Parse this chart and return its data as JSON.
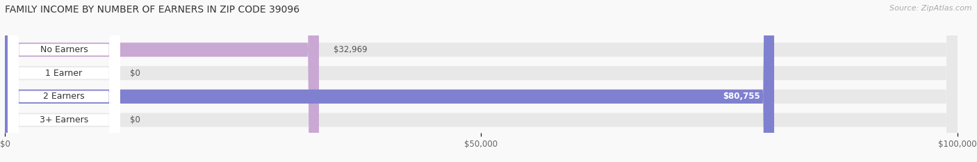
{
  "title": "FAMILY INCOME BY NUMBER OF EARNERS IN ZIP CODE 39096",
  "source": "Source: ZipAtlas.com",
  "categories": [
    "No Earners",
    "1 Earner",
    "2 Earners",
    "3+ Earners"
  ],
  "values": [
    32969,
    0,
    80755,
    0
  ],
  "bar_colors": [
    "#c9a8d4",
    "#5ecfca",
    "#8080d0",
    "#f4a0b8"
  ],
  "bar_bg_color": "#e8e8e8",
  "xlim": [
    0,
    100000
  ],
  "xticks": [
    0,
    50000,
    100000
  ],
  "xtick_labels": [
    "$0",
    "$50,000",
    "$100,000"
  ],
  "value_labels": [
    "$32,969",
    "$0",
    "$80,755",
    "$0"
  ],
  "value_label_inside": [
    false,
    false,
    true,
    false
  ],
  "fig_bg_color": "#f9f9f9",
  "title_fontsize": 10,
  "bar_height": 0.6,
  "label_fontsize": 9,
  "value_fontsize": 8.5
}
